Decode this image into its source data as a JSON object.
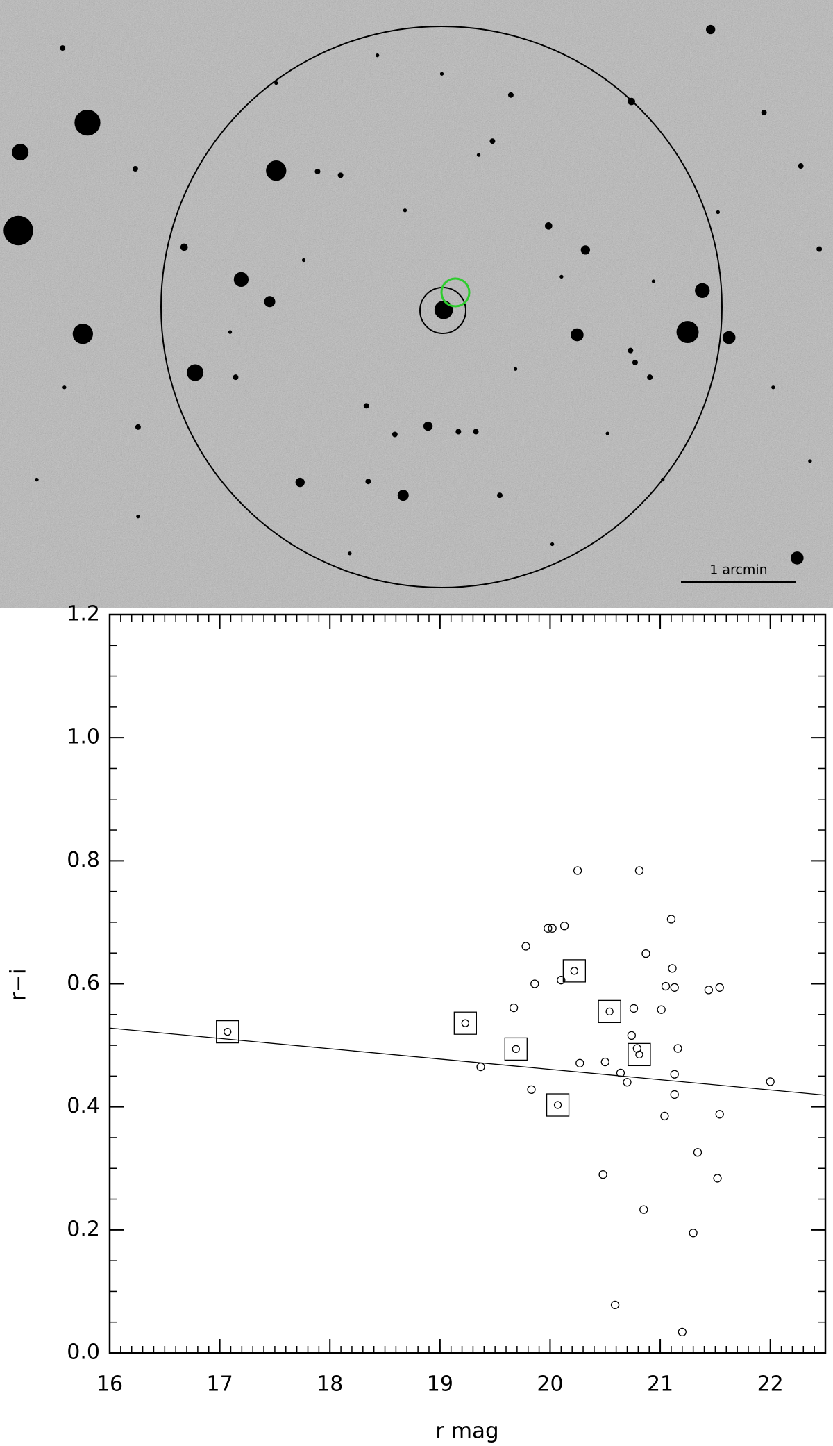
{
  "image": {
    "scale_label": "1 arcmin"
  },
  "chart_data": {
    "type": "scatter",
    "xlabel": "r  mag",
    "ylabel": "r−i",
    "xlim": [
      16,
      22.5
    ],
    "ylim": [
      0,
      1.2
    ],
    "xticks": [
      16,
      17,
      18,
      19,
      20,
      21,
      22
    ],
    "yticks": [
      {
        "value": 0,
        "label": "0.0"
      },
      {
        "value": 0.2,
        "label": "0.2"
      },
      {
        "value": 0.4,
        "label": "0.4"
      },
      {
        "value": 0.6,
        "label": "0.6"
      },
      {
        "value": 0.8,
        "label": "0.8"
      },
      {
        "value": 1.0,
        "label": "1.0"
      },
      {
        "value": 1.2,
        "label": "1.2"
      }
    ],
    "x_minor_step": 0.1,
    "y_minor_step": 0.05,
    "series": [
      {
        "marker": "circle",
        "color": "#000000",
        "x": [
          20.25,
          20.81,
          21.1,
          20.13,
          19.98,
          20.02,
          19.78,
          20.87,
          21.11,
          19.86,
          20.1,
          21.05,
          21.13,
          21.44,
          21.54,
          19.67,
          20.76,
          21.01,
          20.74,
          21.16,
          20.79,
          19.37,
          20.27,
          20.5,
          20.64,
          21.13,
          20.7,
          22.0,
          19.83,
          21.13,
          21.54,
          21.04,
          21.34,
          20.48,
          21.52,
          20.85,
          21.3,
          20.59,
          21.2
        ],
        "values": [
          0.784,
          0.784,
          0.705,
          0.694,
          0.69,
          0.69,
          0.661,
          0.649,
          0.625,
          0.6,
          0.606,
          0.596,
          0.594,
          0.59,
          0.594,
          0.561,
          0.56,
          0.558,
          0.516,
          0.495,
          0.495,
          0.465,
          0.471,
          0.473,
          0.455,
          0.453,
          0.44,
          0.441,
          0.428,
          0.42,
          0.388,
          0.385,
          0.326,
          0.29,
          0.284,
          0.233,
          0.195,
          0.078,
          0.034
        ]
      },
      {
        "marker": "square",
        "color": "#000000",
        "x": [
          17.07,
          19.23,
          19.69,
          20.22,
          20.54,
          20.81,
          20.07
        ],
        "values": [
          0.522,
          0.536,
          0.494,
          0.621,
          0.555,
          0.485,
          0.403
        ]
      }
    ],
    "fit_line": {
      "x": [
        16,
        22.5
      ],
      "y": [
        0.528,
        0.419
      ]
    }
  }
}
